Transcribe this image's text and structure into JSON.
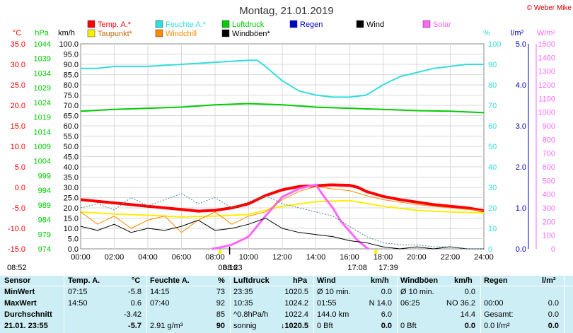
{
  "copyright": "© Weber Mike",
  "chart_data": {
    "type": "line",
    "title": "Montag, 21.01.2019",
    "x_ticks": [
      "00:00",
      "02:00",
      "04:00",
      "06:00",
      "08:00",
      "10:00",
      "12:00",
      "14:00",
      "16:00",
      "18:00",
      "20:00",
      "22:00",
      "24:00"
    ],
    "x_range": [
      0,
      24
    ],
    "axes": {
      "temp": {
        "unit": "°C",
        "range": [
          -15,
          35
        ],
        "ticks": [
          "35.0",
          "30.0",
          "25.0",
          "20.0",
          "15.0",
          "10.0",
          "5.0",
          "0.0",
          "-5.0",
          "-10.0",
          "-15.0"
        ],
        "color": "#ff0000"
      },
      "pressure": {
        "unit": "hPa",
        "range": [
          974,
          1044
        ],
        "ticks": [
          "1044",
          "1039",
          "1034",
          "1029",
          "1024",
          "1019",
          "1014",
          "1009",
          "1004",
          "999",
          "994",
          "989",
          "984",
          "979",
          "974"
        ],
        "color": "#00cc00"
      },
      "wind": {
        "unit": "km/h",
        "range": [
          0,
          100
        ],
        "ticks": [
          "100.0",
          "95.0",
          "90.0",
          "85.0",
          "80.0",
          "75.0",
          "70.0",
          "65.0",
          "60.0",
          "55.0",
          "50.0",
          "45.0",
          "40.0",
          "35.0",
          "30.0",
          "25.0",
          "20.0",
          "15.0",
          "10.0",
          "5.0",
          "0.0"
        ],
        "color": "#000000"
      },
      "humidity": {
        "unit": "%",
        "range": [
          0,
          100
        ],
        "ticks": [
          "100",
          "90",
          "80",
          "70",
          "60",
          "50",
          "40",
          "30",
          "20",
          "10",
          "0"
        ],
        "color": "#33dddd"
      },
      "rain": {
        "unit": "l/m²",
        "range": [
          0,
          5
        ],
        "ticks": [
          "5.0",
          "4.0",
          "3.0",
          "2.0",
          "1.0",
          "0.0"
        ],
        "color": "#0000cc"
      },
      "solar": {
        "unit": "W/m²",
        "range": [
          0,
          1500
        ],
        "ticks": [
          "1500",
          "1400",
          "1300",
          "1200",
          "1100",
          "1000",
          "900",
          "800",
          "700",
          "600",
          "500",
          "400",
          "300",
          "200",
          "100",
          "0"
        ],
        "color": "#ff66ff"
      }
    },
    "legend": [
      {
        "label": "Temp. A.*",
        "color": "#ff0000"
      },
      {
        "label": "Feuchte A.*",
        "color": "#33dddd"
      },
      {
        "label": "Luftdruck",
        "color": "#00cc00"
      },
      {
        "label": "Regen",
        "color": "#0000cc"
      },
      {
        "label": "Wind",
        "color": "#000000"
      },
      {
        "label": "Solar",
        "color": "#ff66ff"
      },
      {
        "label": "Taupunkt*",
        "color": "#ffee00"
      },
      {
        "label": "Windchill",
        "color": "#ff8800"
      },
      {
        "label": "Windböen*",
        "color": "#000000"
      }
    ],
    "series": [
      {
        "name": "Temp. A.*",
        "axis": "temp",
        "color": "#ff0000",
        "x": [
          0,
          1,
          2,
          3,
          4,
          5,
          6,
          7,
          8,
          9,
          10,
          11,
          12,
          13,
          14,
          14.83,
          15,
          16,
          16.5,
          17,
          18,
          19,
          20,
          21,
          22,
          23,
          24
        ],
        "y": [
          -3.0,
          -3.4,
          -3.8,
          -4.2,
          -4.6,
          -5.0,
          -5.4,
          -5.8,
          -5.6,
          -5.0,
          -4.0,
          -2.0,
          -0.6,
          0.2,
          0.4,
          0.6,
          0.6,
          0.5,
          0.0,
          -1.0,
          -2.2,
          -3.0,
          -3.6,
          -4.2,
          -4.6,
          -5.0,
          -5.7
        ]
      },
      {
        "name": "Taupunkt*",
        "axis": "temp",
        "color": "#ffee00",
        "x": [
          0,
          2,
          4,
          6,
          8,
          10,
          12,
          14,
          16,
          18,
          20,
          22,
          24
        ],
        "y": [
          -6.0,
          -6.5,
          -6.8,
          -7.2,
          -7.0,
          -6.6,
          -4.6,
          -3.5,
          -3.2,
          -4.6,
          -5.6,
          -6.0,
          -6.2
        ]
      },
      {
        "name": "Feuchte A.*",
        "axis": "humidity",
        "color": "#33dddd",
        "x": [
          0,
          1,
          2,
          4,
          6,
          8,
          10,
          10.5,
          11,
          12,
          13,
          14,
          15,
          16,
          17,
          18,
          19,
          20,
          21,
          22,
          23,
          24
        ],
        "y": [
          88,
          88,
          89,
          89,
          90,
          91,
          92,
          92,
          89,
          82,
          77,
          75,
          74,
          74,
          75,
          80,
          84,
          86,
          88,
          89,
          90,
          90
        ]
      },
      {
        "name": "Luftdruck",
        "axis": "pressure",
        "color": "#00cc00",
        "x": [
          0,
          2,
          4,
          6,
          8,
          10,
          12,
          14,
          16,
          18,
          20,
          22,
          24
        ],
        "y": [
          1021.0,
          1021.6,
          1022.0,
          1022.4,
          1023.2,
          1023.6,
          1023.2,
          1022.4,
          1022.0,
          1021.6,
          1021.2,
          1021.0,
          1020.5
        ]
      },
      {
        "name": "Solar",
        "axis": "solar",
        "color": "#ff66ff",
        "x": [
          7.8,
          8.3,
          9,
          10,
          11,
          12,
          13,
          14,
          14.5,
          15,
          15.5,
          16,
          16.5,
          17,
          17.15
        ],
        "y": [
          0,
          10,
          30,
          90,
          240,
          380,
          440,
          470,
          380,
          300,
          200,
          130,
          60,
          10,
          0
        ]
      },
      {
        "name": "Windchill",
        "axis": "temp",
        "color": "#ff8800",
        "x": [
          0,
          1,
          2,
          3,
          4,
          5,
          6,
          7,
          8,
          9,
          10,
          11,
          12,
          13,
          14,
          15,
          16,
          17,
          18,
          19,
          20,
          21,
          22,
          23,
          24
        ],
        "y": [
          -6,
          -9,
          -7,
          -10,
          -8,
          -7,
          -11,
          -8,
          -6,
          -9,
          -7,
          -6,
          -3,
          -1,
          0.2,
          -0.4,
          -0.8,
          -2,
          -3,
          -3.6,
          -4.2,
          -4.6,
          -5,
          -5.4,
          -5.7
        ]
      },
      {
        "name": "Wind",
        "axis": "wind",
        "color": "#000000",
        "x": [
          0,
          1,
          2,
          3,
          4,
          5,
          6,
          7,
          8,
          9,
          10,
          11,
          12,
          13,
          14,
          15,
          16,
          17,
          18,
          19,
          20,
          21,
          22,
          23,
          24
        ],
        "y": [
          11,
          9,
          12,
          8,
          10,
          9,
          11,
          14,
          9,
          10,
          12,
          15,
          10,
          8,
          7,
          6,
          4,
          3,
          1,
          0,
          1,
          0,
          1,
          0,
          0
        ]
      },
      {
        "name": "Windböen*",
        "axis": "wind",
        "color": "#000000",
        "x": [
          0,
          1,
          2,
          3,
          4,
          5,
          6,
          7,
          8,
          9,
          10,
          11,
          12,
          13,
          14,
          15,
          16,
          17,
          18,
          19,
          20,
          21,
          22,
          23,
          24
        ],
        "y": [
          20,
          22,
          19,
          25,
          21,
          24,
          27,
          22,
          25,
          20,
          23,
          26,
          22,
          20,
          18,
          16,
          11,
          6,
          3,
          2,
          2,
          1,
          1,
          0,
          0
        ]
      }
    ],
    "markers": [
      {
        "label": "08:52",
        "x": "08:52"
      },
      {
        "label": "08:16",
        "x": "08:16"
      },
      {
        "label": "08:23",
        "x": "08:23"
      },
      {
        "label": "17:08",
        "x": "17:08"
      },
      {
        "label": "17:39",
        "x": "17:39"
      }
    ],
    "legend_placement": "top",
    "grid": true
  },
  "table": {
    "headers": {
      "sensor": "Sensor",
      "temp": "Temp. A.",
      "temp_unit": "°C",
      "humidity": "Feuchte A.",
      "humidity_unit": "%",
      "pressure": "Luftdruck",
      "pressure_unit": "hPa",
      "wind": "Wind",
      "wind_unit": "km/h",
      "gust": "Windböen",
      "gust_unit": "km/h",
      "rain": "Regen",
      "rain_unit": "l/m²"
    },
    "rows": [
      {
        "label": "MinWert",
        "temp_time": "07:15",
        "temp_val": "-5.8",
        "hum_time": "14:15",
        "hum_val": "73",
        "pres_time": "23:35",
        "pres_val": "1020.5",
        "wind_a": "Ø 10 min.",
        "wind_val": "0.0",
        "gust_a": "Ø 10 min.",
        "gust_val": "0.0",
        "rain_a": "",
        "rain_val": ""
      },
      {
        "label": "MaxWert",
        "temp_time": "14:50",
        "temp_val": "0.6",
        "hum_time": "07:40",
        "hum_val": "92",
        "pres_time": "10:35",
        "pres_val": "1024.2",
        "wind_a": "01:55",
        "wind_val": "N 14.0",
        "gust_a": "06:25",
        "gust_val": "NO 36.2",
        "rain_a": "00:00",
        "rain_val": "0.0"
      },
      {
        "label": "Durchschnitt",
        "temp_time": "",
        "temp_val": "-3.42",
        "hum_time": "",
        "hum_val": "85",
        "pres_time": "^0.8hPa/h",
        "pres_val": "1022.4",
        "wind_a": "144.0 km",
        "wind_val": "6.0",
        "gust_a": "",
        "gust_val": "14.4",
        "rain_a": "Gesamt:",
        "rain_val": "0.0"
      },
      {
        "label": "21.01. 23:55",
        "temp_time": "",
        "temp_val": "-5.7",
        "hum_time": "2.91 g/m³",
        "hum_val": "90",
        "pres_time": "sonnig",
        "pres_val": "↓1020.5",
        "wind_a": "0 Bft",
        "wind_val": "0.0",
        "gust_a": "0 Bft",
        "gust_val": "0.0",
        "rain_a": "0.0 l/m²",
        "rain_val": "0.0"
      }
    ]
  }
}
